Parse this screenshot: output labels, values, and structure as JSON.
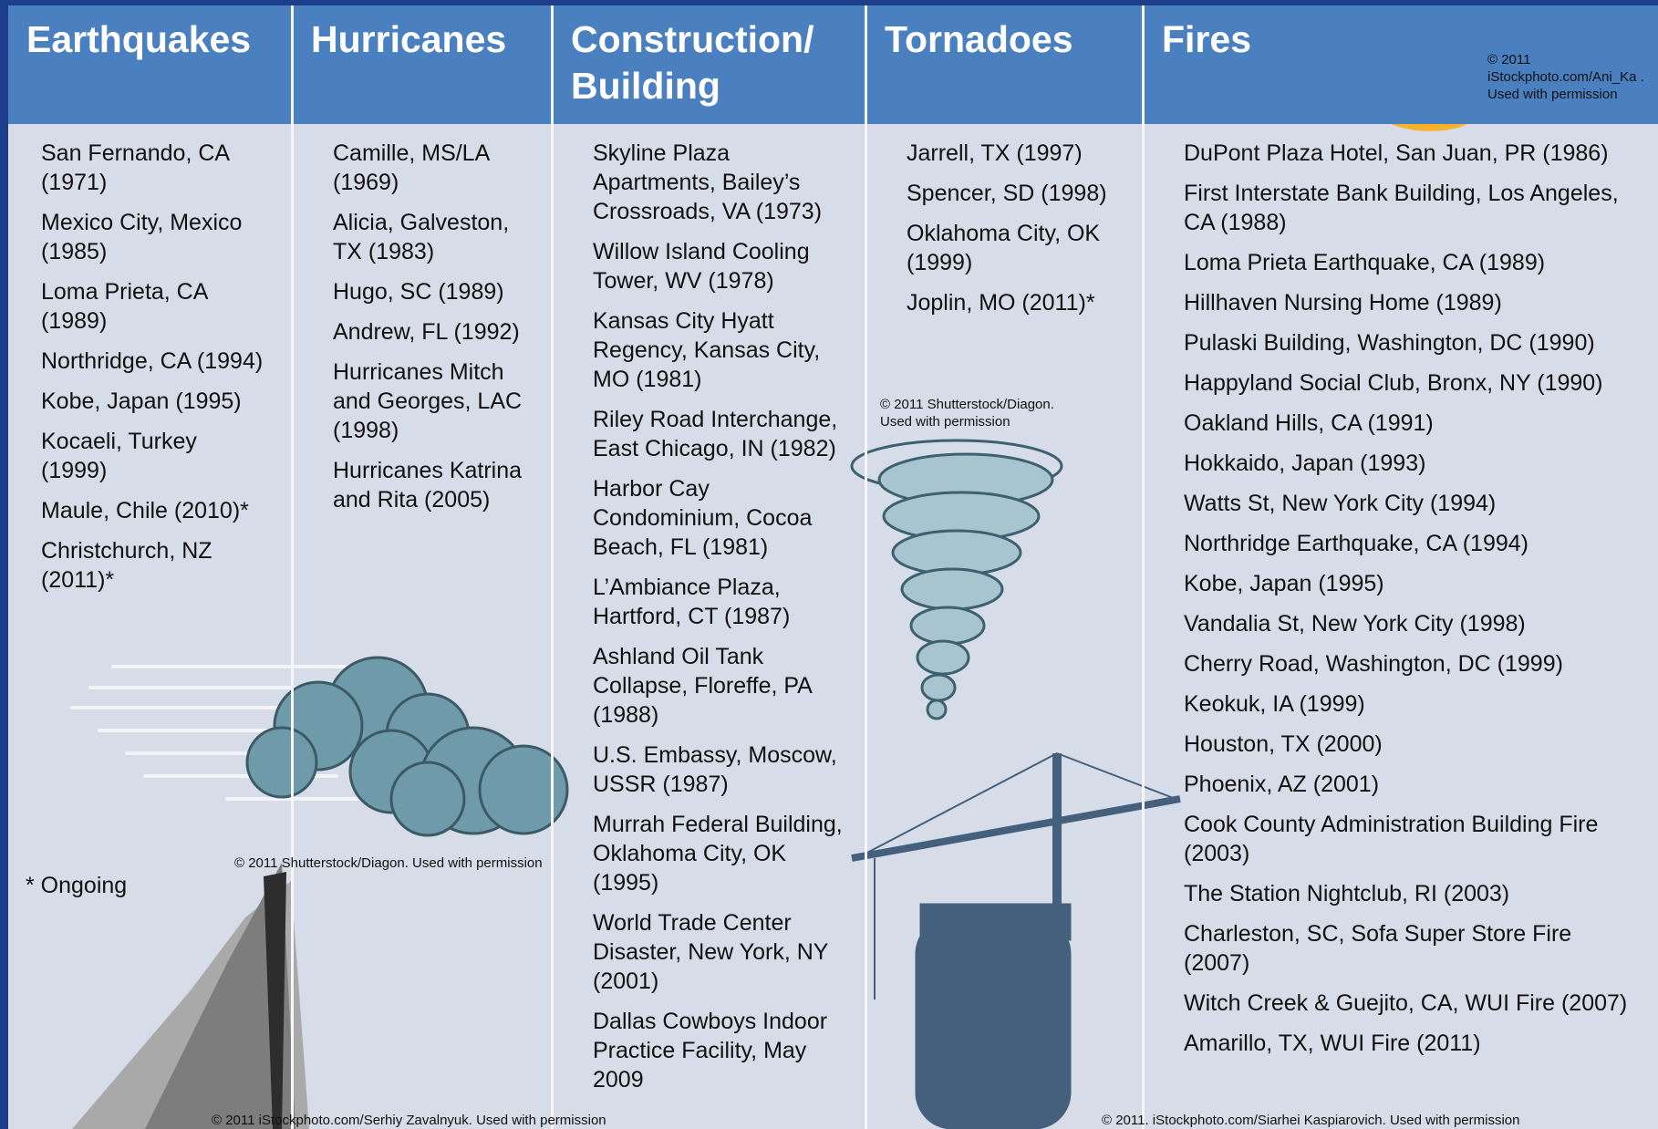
{
  "columns": [
    {
      "header": "Earthquakes",
      "items": [
        "San Fernando, CA (1971)",
        "Mexico City, Mexico (1985)",
        "Loma Prieta, CA (1989)",
        "Northridge, CA (1994)",
        "Kobe, Japan (1995)",
        "Kocaeli, Turkey (1999)",
        "Maule, Chile (2010)*",
        "Christchurch, NZ (2011)*"
      ]
    },
    {
      "header": "Hurricanes",
      "items": [
        "Camille, MS/LA (1969)",
        "Alicia, Galveston, TX (1983)",
        "Hugo, SC (1989)",
        "Andrew, FL (1992)",
        "Hurricanes Mitch and Georges, LAC (1998)",
        "Hurricanes Katrina and Rita (2005)"
      ]
    },
    {
      "header": "Construction/ Building",
      "items": [
        "Skyline Plaza Apartments, Bailey’s Crossroads, VA (1973)",
        "Willow Island Cooling Tower, WV (1978)",
        "Kansas City Hyatt Regency, Kansas City, MO (1981)",
        "Riley Road Interchange, East Chicago, IN (1982)",
        "Harbor Cay Condominium, Cocoa Beach, FL (1981)",
        "L’Ambiance Plaza, Hartford, CT (1987)",
        "Ashland Oil Tank Collapse, Floreffe, PA (1988)",
        "U.S. Embassy, Moscow, USSR (1987)",
        "Murrah Federal Building, Oklahoma City, OK (1995)",
        "World Trade Center Disaster, New York, NY (2001)",
        "Dallas Cowboys Indoor Practice Facility, May 2009"
      ]
    },
    {
      "header": "Tornadoes",
      "items": [
        "Jarrell, TX (1997)",
        "Spencer, SD (1998)",
        "Oklahoma City, OK (1999)",
        "Joplin, MO (2011)*"
      ]
    },
    {
      "header": "Fires",
      "items": [
        "DuPont Plaza Hotel, San Juan, PR (1986)",
        "First Interstate Bank Building, Los Angeles, CA (1988)",
        "Loma Prieta Earthquake, CA (1989)",
        "Hillhaven Nursing Home (1989)",
        "Pulaski Building, Washington, DC (1990)",
        "Happyland Social Club, Bronx, NY (1990)",
        "Oakland Hills, CA (1991)",
        "Hokkaido, Japan (1993)",
        "Watts St, New York City (1994)",
        "Northridge Earthquake, CA (1994)",
        "Kobe, Japan (1995)",
        "Vandalia St, New York City (1998)",
        "Cherry Road, Washington, DC (1999)",
        "Keokuk, IA (1999)",
        "Houston, TX (2000)",
        "Phoenix, AZ (2001)",
        "Cook County Administration Building Fire (2003)",
        "The Station Nightclub, RI (2003)",
        "Charleston, SC, Sofa Super Store Fire (2007)",
        "Witch Creek & Guejito, CA, WUI Fire (2007)",
        "Amarillo, TX, WUI Fire (2011)"
      ]
    }
  ],
  "footnote": "* Ongoing",
  "credits": [
    "© 2011 iStockphoto.com/Ani_Ka . Used with permission",
    "© 2011 Shutterstock/Diagon. Used with permission",
    "© 2011 Shutterstock/Diagon. Used with permission",
    "© 2011 iStockphoto.com/Serhiy Zavalnyuk. Used with permission",
    "© 2011. iStockphoto.com/Siarhei Kaspiarovich. Used with permission"
  ]
}
